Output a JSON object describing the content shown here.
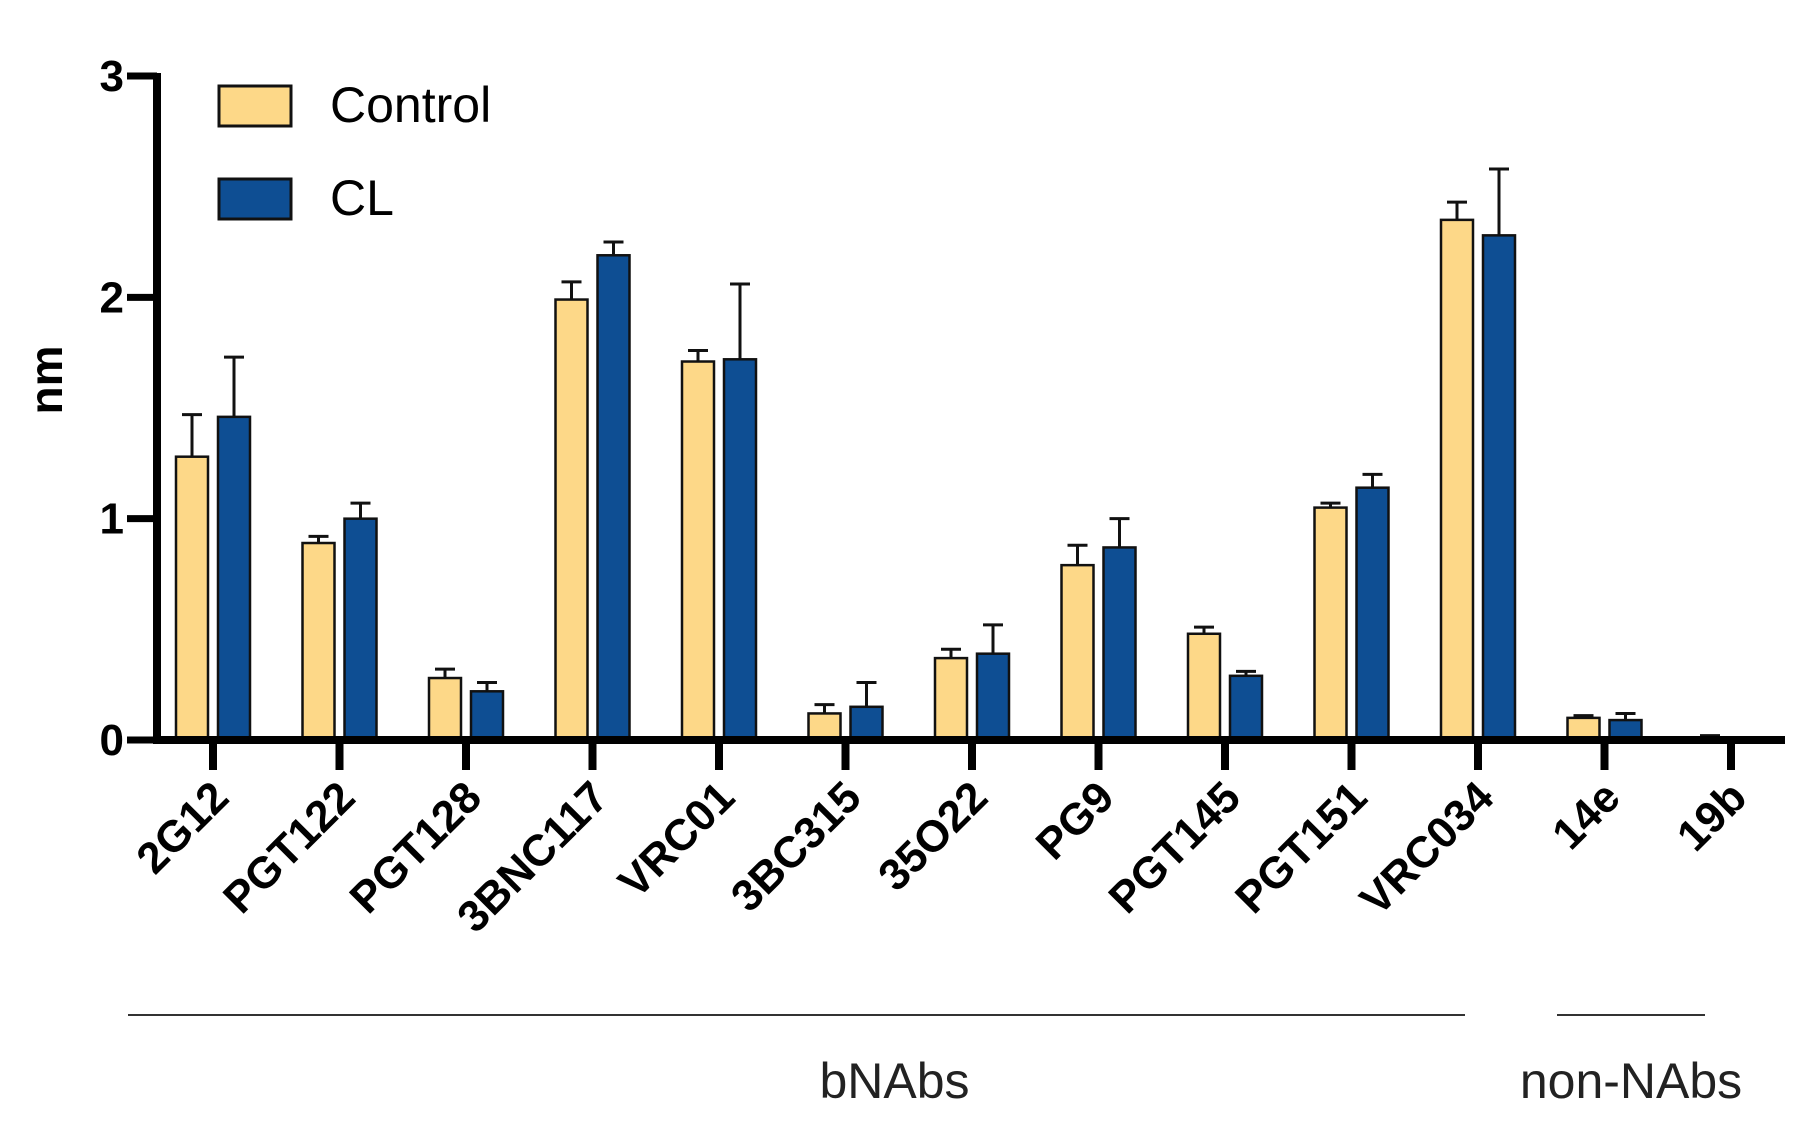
{
  "chart_data": {
    "type": "bar",
    "title": "",
    "xlabel": "",
    "ylabel": "nm",
    "ylim": [
      0,
      3
    ],
    "yticks": [
      0,
      1,
      2,
      3
    ],
    "grid": false,
    "legend_position": "top-left",
    "categories": [
      "2G12",
      "PGT122",
      "PGT128",
      "3BNC117",
      "VRC01",
      "3BC315",
      "35O22",
      "PG9",
      "PGT145",
      "PGT151",
      "VRC034",
      "14e",
      "19b"
    ],
    "series": [
      {
        "name": "Control",
        "color": "#FDD888",
        "values": [
          1.28,
          0.89,
          0.28,
          1.99,
          1.71,
          0.12,
          0.37,
          0.79,
          0.48,
          1.05,
          2.35,
          0.1,
          0.01
        ],
        "errors": [
          0.19,
          0.03,
          0.04,
          0.08,
          0.05,
          0.04,
          0.04,
          0.09,
          0.03,
          0.02,
          0.08,
          0.01,
          0.01
        ]
      },
      {
        "name": "CL",
        "color": "#0E4E93",
        "values": [
          1.46,
          1.0,
          0.22,
          2.19,
          1.72,
          0.15,
          0.39,
          0.87,
          0.29,
          1.14,
          2.28,
          0.09,
          0.0
        ],
        "errors": [
          0.27,
          0.07,
          0.04,
          0.06,
          0.34,
          0.11,
          0.13,
          0.13,
          0.02,
          0.06,
          0.3,
          0.03,
          0.0
        ]
      }
    ],
    "groups": [
      {
        "label": "bNAbs",
        "categories": [
          "2G12",
          "PGT122",
          "PGT128",
          "3BNC117",
          "VRC01",
          "3BC315",
          "35O22",
          "PG9",
          "PGT145",
          "PGT151",
          "VRC034"
        ]
      },
      {
        "label": "non-NAbs",
        "categories": [
          "14e",
          "19b"
        ]
      }
    ]
  }
}
